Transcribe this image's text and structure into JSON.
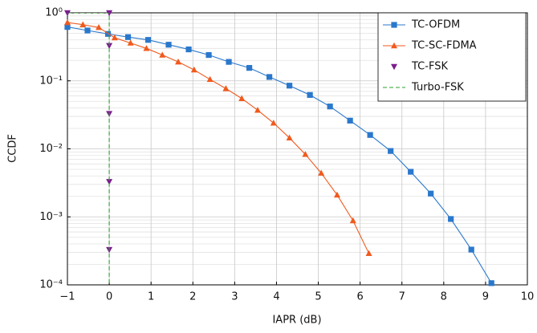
{
  "chart_data": {
    "type": "line",
    "xlabel": "IAPR (dB)",
    "ylabel": "CCDF",
    "xlim": [
      -1,
      10
    ],
    "ylim": [
      0.0001,
      1
    ],
    "log_y": true,
    "grid": true,
    "minor_grid": true,
    "legend": "upper right",
    "xticks": [
      {
        "value": -1,
        "label": "−1"
      },
      0,
      1,
      2,
      3,
      4,
      5,
      6,
      7,
      8,
      9,
      10
    ],
    "yticks": [
      {
        "value": 0.0001,
        "label": "10⁻⁴"
      },
      {
        "value": 0.001,
        "label": "10⁻³"
      },
      {
        "value": 0.01,
        "label": "10⁻²"
      },
      {
        "value": 0.1,
        "label": "10⁻¹"
      },
      {
        "value": 1,
        "label": "10⁰"
      }
    ],
    "series": [
      {
        "name": "TC-OFDM",
        "color": "#2a78cc",
        "marker": "square",
        "line": "solid",
        "x": [
          -1,
          -0.52,
          -0.03,
          0.45,
          0.93,
          1.42,
          1.9,
          2.38,
          2.86,
          3.35,
          3.83,
          4.31,
          4.8,
          5.28,
          5.76,
          6.24,
          6.73,
          7.21,
          7.69,
          8.17,
          8.66,
          9.14
        ],
        "values": [
          0.62,
          0.55,
          0.49,
          0.44,
          0.4,
          0.34,
          0.29,
          0.24,
          0.19,
          0.155,
          0.114,
          0.085,
          0.062,
          0.042,
          0.026,
          0.016,
          0.0093,
          0.0046,
          0.0022,
          0.00093,
          0.00033,
          0.000106
        ]
      },
      {
        "name": "TC-SC-FDMA",
        "color": "#f05a1e",
        "marker": "triangle",
        "line": "solid",
        "x": [
          -1,
          -0.63,
          -0.25,
          0.13,
          0.51,
          0.89,
          1.27,
          1.65,
          2.03,
          2.41,
          2.79,
          3.17,
          3.55,
          3.93,
          4.31,
          4.69,
          5.07,
          5.45,
          5.83,
          6.21
        ],
        "values": [
          0.72,
          0.67,
          0.61,
          0.43,
          0.36,
          0.3,
          0.24,
          0.19,
          0.145,
          0.105,
          0.077,
          0.055,
          0.037,
          0.024,
          0.0145,
          0.0083,
          0.0044,
          0.0021,
          0.00088,
          0.00029
        ]
      },
      {
        "name": "TC-FSK",
        "color": "#7b1c8e",
        "marker": "triangle-down",
        "line": "none",
        "x": [
          -1,
          0,
          0,
          0,
          0,
          0
        ],
        "values": [
          1,
          1,
          0.33,
          0.033,
          0.0033,
          0.00033
        ]
      },
      {
        "name": "Turbo-FSK",
        "color": "#2ca02c",
        "marker": "none",
        "line": "dashed",
        "x": [
          -1,
          0,
          0
        ],
        "values": [
          1,
          1,
          0.0001
        ]
      }
    ]
  }
}
